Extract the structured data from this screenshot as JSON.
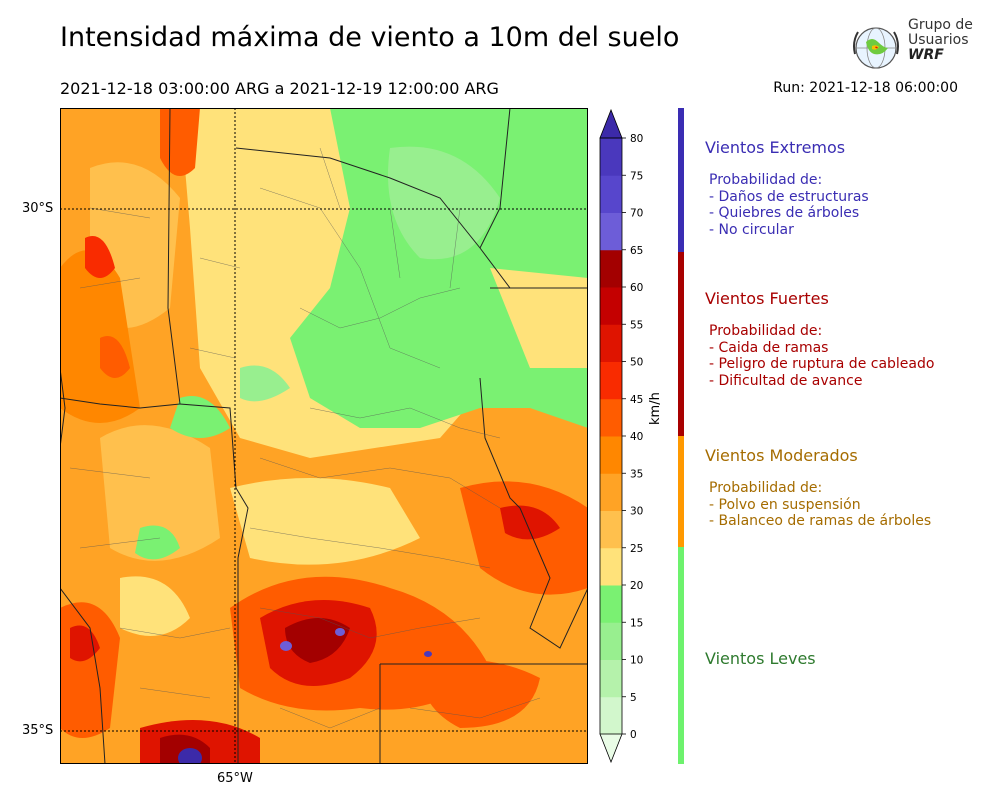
{
  "header": {
    "title": "Intensidad máxima de viento a 10m del suelo",
    "period": "2021-12-18 03:00:00 ARG  a  2021-12-19 12:00:00 ARG",
    "run": "Run: 2021-12-18 06:00:00"
  },
  "logo": {
    "line1": "Grupo de",
    "line2": "Usuarios",
    "line3": "WRF"
  },
  "map": {
    "lat_labels": [
      "30°S",
      "35°S"
    ],
    "lon_labels": [
      "65°W"
    ]
  },
  "colorbar": {
    "unit": "km/h",
    "ticks": [
      "0",
      "5",
      "10",
      "15",
      "20",
      "25",
      "30",
      "35",
      "40",
      "45",
      "50",
      "55",
      "60",
      "65",
      "70",
      "75",
      "80"
    ],
    "colors": [
      "#e9fce6",
      "#d2f7cc",
      "#b5f2ab",
      "#98ef8f",
      "#7af172",
      "#ffe27a",
      "#ffc04d",
      "#ffa325",
      "#ff8700",
      "#ff5c00",
      "#f92b00",
      "#df1400",
      "#c40000",
      "#a30000",
      "#6d5dd8",
      "#5746cc",
      "#4a38bd",
      "#3c2aa9"
    ]
  },
  "categories": [
    {
      "title": "Vientos Extremos",
      "color": "#3a2db3",
      "lines": [
        "Probabilidad de:",
        "- Daños de estructuras",
        "- Quiebres de árboles",
        "- No circular"
      ]
    },
    {
      "title": "Vientos Fuertes",
      "color": "#a80000",
      "lines": [
        "Probabilidad de:",
        "- Caida de ramas",
        "- Peligro de ruptura de cableado",
        "- Dificultad de avance"
      ]
    },
    {
      "title": "Vientos Moderados",
      "color": "#a56c00",
      "bar_color": "#ff9900",
      "lines": [
        "Probabilidad de:",
        "- Polvo en suspensión",
        "- Balanceo de ramas de árboles"
      ]
    },
    {
      "title": "Vientos Leves",
      "color": "#2e7a2e",
      "bar_color": "#6df26d",
      "lines": []
    }
  ]
}
